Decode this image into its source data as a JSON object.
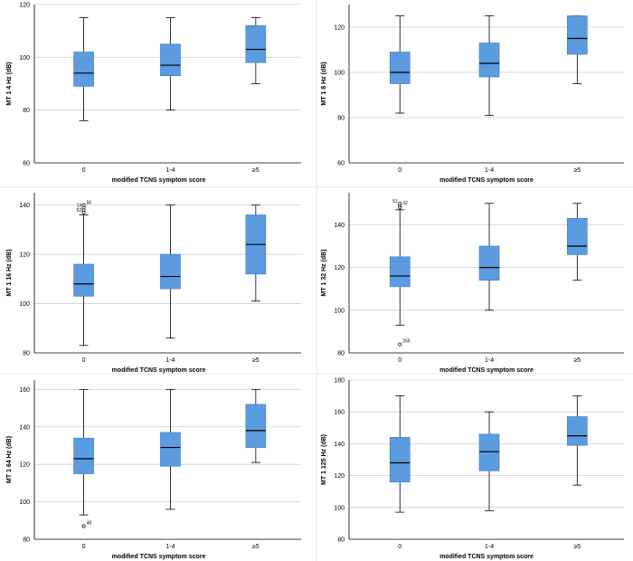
{
  "chart_data": [
    {
      "type": "boxplot",
      "xlabel": "modified TCNS symptom score",
      "ylabel": "MT 1 4 Hz (dB)",
      "categories": [
        "0",
        "1-4",
        "≥5"
      ],
      "ylim": [
        60,
        120
      ],
      "yticks": [
        60,
        80,
        100,
        120
      ],
      "boxes": [
        {
          "min": 76,
          "q1": 89,
          "median": 94,
          "q3": 102,
          "max": 115,
          "outliers": []
        },
        {
          "min": 80,
          "q1": 93,
          "median": 97,
          "q3": 105,
          "max": 115,
          "outliers": []
        },
        {
          "min": 90,
          "q1": 98,
          "median": 103,
          "q3": 112,
          "max": 115,
          "outliers": []
        }
      ]
    },
    {
      "type": "boxplot",
      "xlabel": "modified TCNS symptom score",
      "ylabel": "MT 1 8 Hz (dB)",
      "categories": [
        "0",
        "1-4",
        "≥5"
      ],
      "ylim": [
        60,
        130
      ],
      "yticks": [
        60,
        80,
        100,
        120
      ],
      "boxes": [
        {
          "min": 82,
          "q1": 95,
          "median": 100,
          "q3": 109,
          "max": 125,
          "outliers": []
        },
        {
          "min": 81,
          "q1": 98,
          "median": 104,
          "q3": 113,
          "max": 125,
          "outliers": []
        },
        {
          "min": 95,
          "q1": 108,
          "median": 115,
          "q3": 125,
          "max": 125,
          "outliers": []
        }
      ]
    },
    {
      "type": "boxplot",
      "xlabel": "modified TCNS symptom score",
      "ylabel": "MT 1 16 Hz (dB)",
      "categories": [
        "0",
        "1-4",
        "≥5"
      ],
      "ylim": [
        80,
        145
      ],
      "yticks": [
        80,
        100,
        120,
        140
      ],
      "boxes": [
        {
          "min": 83,
          "q1": 103,
          "median": 108,
          "q3": 116,
          "max": 136,
          "outliers": [
            {
              "value": 137,
              "label": "52"
            },
            {
              "value": 138,
              "label": ""
            },
            {
              "value": 139,
              "label": "13"
            },
            {
              "value": 140,
              "label": "50"
            }
          ]
        },
        {
          "min": 86,
          "q1": 106,
          "median": 111,
          "q3": 120,
          "max": 140,
          "outliers": []
        },
        {
          "min": 101,
          "q1": 112,
          "median": 124,
          "q3": 136,
          "max": 140,
          "outliers": []
        }
      ]
    },
    {
      "type": "boxplot",
      "xlabel": "modified TCNS symptom score",
      "ylabel": "MT 1 32 Hz (dB)",
      "categories": [
        "0",
        "1-4",
        "≥5"
      ],
      "ylim": [
        80,
        155
      ],
      "yticks": [
        80,
        100,
        120,
        140
      ],
      "boxes": [
        {
          "min": 93,
          "q1": 111,
          "median": 116,
          "q3": 125,
          "max": 147,
          "outliers": [
            {
              "value": 148,
              "label": ""
            },
            {
              "value": 149,
              "label": "32"
            },
            {
              "value": 150,
              "label": "51"
            },
            {
              "value": 84,
              "label": "265"
            }
          ]
        },
        {
          "min": 100,
          "q1": 114,
          "median": 120,
          "q3": 130,
          "max": 150,
          "outliers": []
        },
        {
          "min": 114,
          "q1": 126,
          "median": 130,
          "q3": 143,
          "max": 150,
          "outliers": []
        }
      ]
    },
    {
      "type": "boxplot",
      "xlabel": "modified TCNS symptom score",
      "ylabel": "MT 1 64 Hz (dB)",
      "categories": [
        "0",
        "1-4",
        "≥5"
      ],
      "ylim": [
        80,
        165
      ],
      "yticks": [
        80,
        100,
        120,
        140,
        160
      ],
      "boxes": [
        {
          "min": 93,
          "q1": 115,
          "median": 123,
          "q3": 134,
          "max": 160,
          "outliers": [
            {
              "value": 87,
              "label": "48"
            }
          ]
        },
        {
          "min": 96,
          "q1": 119,
          "median": 129,
          "q3": 137,
          "max": 160,
          "outliers": []
        },
        {
          "min": 121,
          "q1": 129,
          "median": 138,
          "q3": 152,
          "max": 160,
          "outliers": []
        }
      ]
    },
    {
      "type": "boxplot",
      "xlabel": "modified TCNS symptom score",
      "ylabel": "MT 1 125 Hz (dB)",
      "categories": [
        "0",
        "1-4",
        "≥5"
      ],
      "ylim": [
        80,
        180
      ],
      "yticks": [
        80,
        100,
        120,
        140,
        160,
        180
      ],
      "boxes": [
        {
          "min": 97,
          "q1": 116,
          "median": 128,
          "q3": 144,
          "max": 170,
          "outliers": []
        },
        {
          "min": 98,
          "q1": 123,
          "median": 135,
          "q3": 146,
          "max": 160,
          "outliers": []
        },
        {
          "min": 114,
          "q1": 139,
          "median": 145,
          "q3": 157,
          "max": 170,
          "outliers": []
        }
      ]
    }
  ]
}
